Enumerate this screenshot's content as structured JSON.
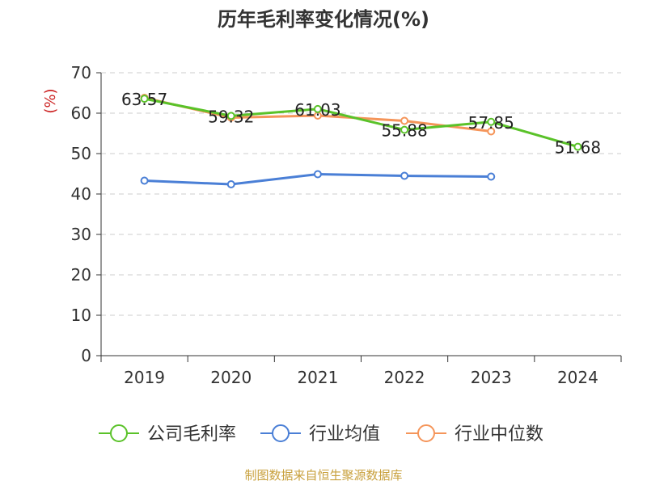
{
  "chart_data": {
    "type": "line",
    "title": "历年毛利率变化情况(%)",
    "ylabel": "(%)",
    "xlabel": "",
    "categories": [
      "2019",
      "2020",
      "2021",
      "2022",
      "2023",
      "2024"
    ],
    "ylim": [
      0,
      70
    ],
    "yticks": [
      "0",
      "10",
      "20",
      "30",
      "40",
      "50",
      "60",
      "70"
    ],
    "grid": true,
    "legend_position": "bottom",
    "series": [
      {
        "name": "公司毛利率",
        "color": "#5ac229",
        "values": [
          63.57,
          59.32,
          61.03,
          55.88,
          57.85,
          51.68
        ],
        "labels": [
          "63.57",
          "59.32",
          "61.03",
          "55.88",
          "57.85",
          "51.68"
        ]
      },
      {
        "name": "行业均值",
        "color": "#4a7fd6",
        "values": [
          43.3,
          42.4,
          44.9,
          44.5,
          44.3,
          null
        ]
      },
      {
        "name": "行业中位数",
        "color": "#f5955a",
        "values": [
          63.8,
          58.9,
          59.4,
          58.1,
          55.5,
          null
        ]
      }
    ]
  },
  "source": "制图数据来自恒生聚源数据库"
}
